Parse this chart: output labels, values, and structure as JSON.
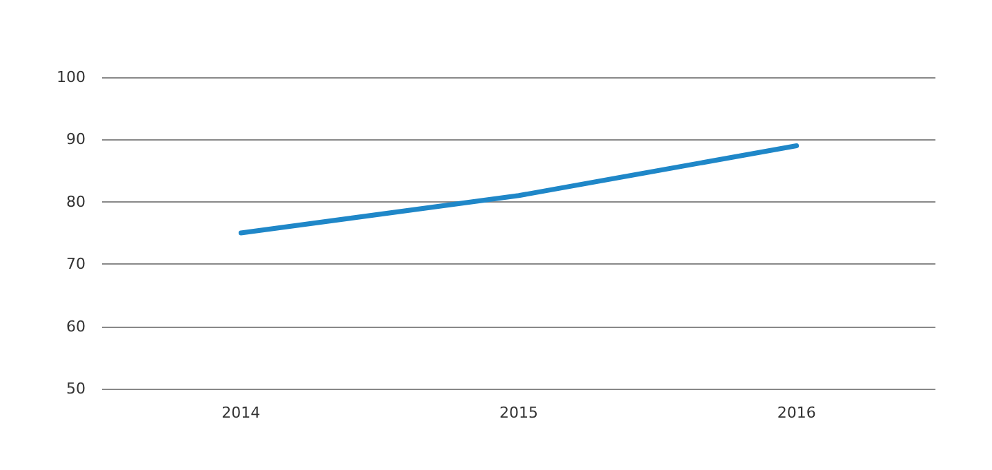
{
  "chart_data": {
    "type": "line",
    "categories": [
      "2014",
      "2015",
      "2016"
    ],
    "series": [
      {
        "color": "#1f87c8",
        "values": [
          75,
          81,
          89
        ]
      }
    ],
    "ylim": [
      50,
      100
    ],
    "yticks": [
      50,
      60,
      70,
      80,
      90,
      100
    ],
    "grid": "y",
    "marker": "none",
    "line_style": "solid"
  }
}
